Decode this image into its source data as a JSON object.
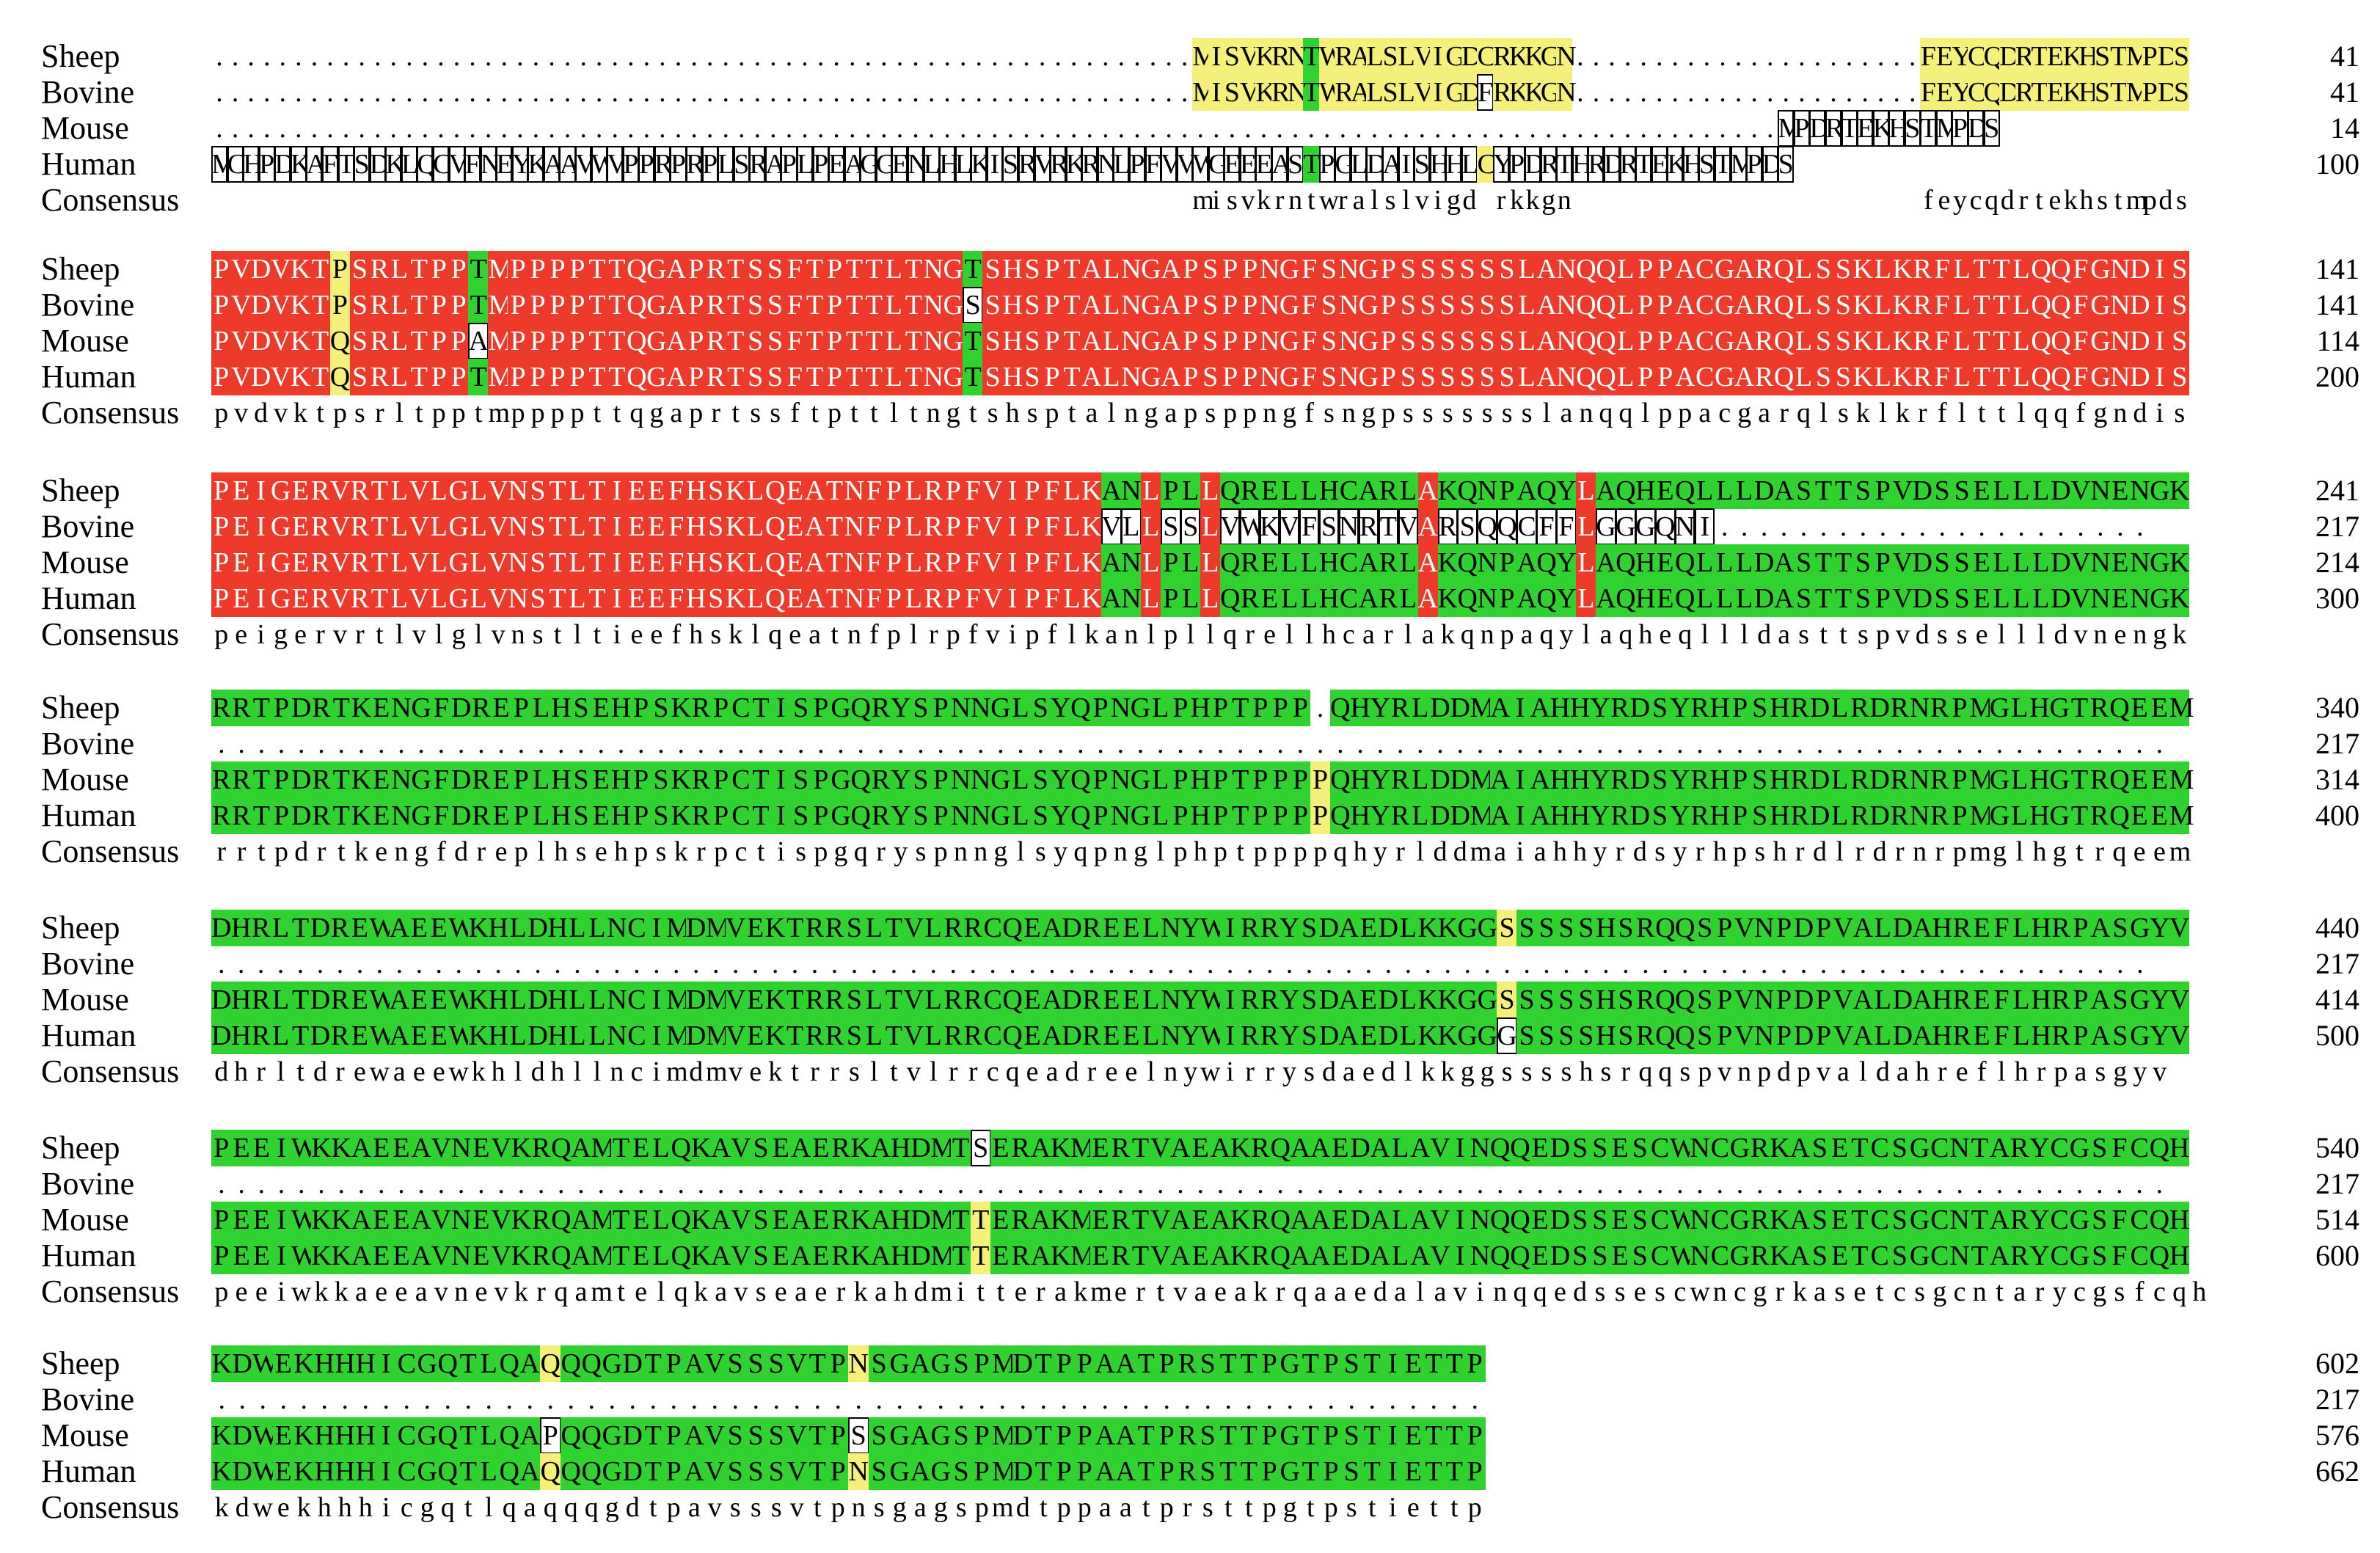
{
  "colors": {
    "identical": "#ee3a2a",
    "conserved": "#2fd22f",
    "similar": "#f4f07a",
    "background": "#ffffff"
  },
  "species": [
    "Sheep",
    "Bovine",
    "Mouse",
    "Human"
  ],
  "consensus_label": "Consensus",
  "blocks": [
    {
      "rows": [
        {
          "name": "Sheep",
          "seq": "..............................................................MISVKRNTWRALSLVIGDCRKKGN......................FEYCQDRTEKHSTMPDS",
          "end": "41"
        },
        {
          "name": "Bovine",
          "seq": "..............................................................MISVKRNTWRALSLVIGDFRKKGN......................FEYCQDRTEKHSTMPDS",
          "end": "41"
        },
        {
          "name": "Mouse",
          "seq": "...................................................................................................MPDRTEKHSTMPDS",
          "end": "14"
        },
        {
          "name": "Human",
          "seq": "MCHPDKAFTSDKLQCVFNEYKAAVWVPPRPRPLSRAPLPEAGGENLHLKISRVRKRNLPFVVWGEEEASTPGLDAISHHLCYPDRTHRDRTEKHSTMPDS",
          "end": "100"
        }
      ],
      "consensus": "..............................................................misvkrntwralslvigd.rkkgn......................feycqdrtekhstmpds"
    },
    {
      "rows": [
        {
          "name": "Sheep",
          "seq": "PVDVKTPSRLTPPTMPPPPTTQGAPRTSSFTPTTLTNGTSHSPTALNGAPSPPNGFSNGPSSSSSSLANQQLPPACGARQLSSKLKRFLTTLQQFGNDIS",
          "end": "141"
        },
        {
          "name": "Bovine",
          "seq": "PVDVKTPSRLTPPTMPPPPTTQGAPRTSSFTPTTLTNGSSHSPTALNGAPSPPNGFSNGPSSSSSSLANQQLPPACGARQLSSKLKRFLTTLQQFGNDIS",
          "end": "141"
        },
        {
          "name": "Mouse",
          "seq": "PVDVKTQSRLTPPAMPPPPTTQGAPRTSSFTPTTLTNGTSHSPTALNGAPSPPNGFSNGPSSSSSSLANQQLPPACGARQLSSKLKRFLTTLQQFGNDIS",
          "end": "114"
        },
        {
          "name": "Human",
          "seq": "PVDVKTQSRLTPPTMPPPPTTQGAPRTSSFTPTTLTNGTSHSPTALNGAPSPPNGFSNGPSSSSSSLANQQLPPACGARQLSSKLKRFLTTLQQFGNDIS",
          "end": "200"
        }
      ],
      "consensus": "pvdvktpsrltpptmppppttqgaprtssftpttltngtshsptalngapsppngfsngpssssssslanqqlppacgarqlsklkrflttlqqfgndis"
    },
    {
      "rows": [
        {
          "name": "Sheep",
          "seq": "PEIGERVRTLVLGLVNSTLTIEEFHSKLQEATNFPLRPFVIPFLKANLPLLQRELLHCARLAKQNPAQYLAQHEQLLLDASTTSPVDSSELLLDVNENGK",
          "end": "241"
        },
        {
          "name": "Bovine",
          "seq": "PEIGERVRTLVLGLVNSTLTIEEFHSKLQEATNFPLRPFVIPFLKVLLSSLVWKVFSNRTVARSQQCFFLGGGQNI......................",
          "end": "217"
        },
        {
          "name": "Mouse",
          "seq": "PEIGERVRTLVLGLVNSTLTIEEFHSKLQEATNFPLRPFVIPFLKANLPLLQRELLHCARLAKQNPAQYLAQHEQLLLDASTTSPVDSSELLLDVNENGK",
          "end": "214"
        },
        {
          "name": "Human",
          "seq": "PEIGERVRTLVLGLVNSTLTIEEFHSKLQEATNFPLRPFVIPFLKANLPLLQRELLHCARLAKQNPAQYLAQHEQLLLDASTTSPVDSSELLLDVNENGK",
          "end": "300"
        }
      ],
      "consensus": "peigervrtlvlglvnstltieefhsklqeatnfplrpfvipflkanlpllqrellhcarlakqnpaqylaqheqllldasttspvdssellldvnengk"
    },
    {
      "rows": [
        {
          "name": "Sheep",
          "seq": "RRTPDRTKENGFDREPLHSEHPSKRPCTISPGQRYSPNNGLSYQPNGLPHPTPPP.QHYRLDDMAIAHHYRDSYRHPSHRDLRDRNRPMGLHGTRQEEM",
          "end": "340"
        },
        {
          "name": "Bovine",
          "seq": "..................................................................................................",
          "end": "217"
        },
        {
          "name": "Mouse",
          "seq": "RRTPDRTKENGFDREPLHSEHPSKRPCTISPGQRYSPNNGLSYQPNGLPHPTPPPPQHYRLDDMAIAHHYRDSYRHPSHRDLRDRNRPMGLHGTRQEEM",
          "end": "314"
        },
        {
          "name": "Human",
          "seq": "RRTPDRTKENGFDREPLHSEHPSKRPCTISPGQRYSPNNGLSYQPNGLPHPTPPPPQHYRLDDMAIAHHYRDSYRHPSHRDLRDRNRPMGLHGTRQEEM",
          "end": "400"
        }
      ],
      "consensus": "rrtpdrtkengfdreplhsehpskrpctispgqryspnnglsyqpnglphptppppqhyrlddmaiahhyrdsyrhpshrdlrdrnrpmglhgtrqeem"
    },
    {
      "rows": [
        {
          "name": "Sheep",
          "seq": "DHRLTDREWAEEWKHLDHLLNCIMDMVEKTRRSLTVLRRCQEADREELNYWIRRYSDAEDLKKGGSSSSSHSRQQSPVNPDPVALDAHREFLHRPASGYV",
          "end": "440"
        },
        {
          "name": "Bovine",
          "seq": "..................................................................................................",
          "end": "217"
        },
        {
          "name": "Mouse",
          "seq": "DHRLTDREWAEEWKHLDHLLNCIMDMVEKTRRSLTVLRRCQEADREELNYWIRRYSDAEDLKKGGSSSSSHSRQQSPVNPDPVALDAHREFLHRPASGYV",
          "end": "414"
        },
        {
          "name": "Human",
          "seq": "DHRLTDREWAEEWKHLDHLLNCIMDMVEKTRRSLTVLRRCQEADREELNYWIRRYSDAEDLKKGGGSSSSHSRQQSPVNPDPVALDAHREFLHRPASGYV",
          "end": "500"
        }
      ],
      "consensus": "dhrltdrewaeewkhldhllncimdmvektrrsltvlrrcqeadreelnywirrysdaedlkkggsssshsrqqspvnpdpvaldahreflhrpasgyv"
    },
    {
      "rows": [
        {
          "name": "Sheep",
          "seq": "PEEIWKKAEEAVNEVKRQAMTELQKAVSEAERKAHDMTSERAKMERTVAEAKRQAAEDALAVINQQEDSSESCWNCGRKASETCSGCNTARYCGSFCQH",
          "end": "540"
        },
        {
          "name": "Bovine",
          "seq": "..................................................................................................",
          "end": "217"
        },
        {
          "name": "Mouse",
          "seq": "PEEIWKKAEEAVNEVKRQAMTELQKAVSEAERKAHDMTTERAKMERTVAEAKRQAAEDALAVINQQEDSSESCWNCGRKASETCSGCNTARYCGSFCQH",
          "end": "514"
        },
        {
          "name": "Human",
          "seq": "PEEIWKKAEEAVNEVKRQAMTELQKAVSEAERKAHDMTTERAKMERTVAEAKRQAAEDALAVINQQEDSSESCWNCGRKASETCSGCNTARYCGSFCQH",
          "end": "600"
        }
      ],
      "consensus": "peeiwkkaeeavnevkrqamtelqkavseaerkahdmitterakmertvaeakrqaaedalavinqqedssescwncgrkasetcsgcntarycgsfcqh"
    },
    {
      "rows": [
        {
          "name": "Sheep",
          "seq": "KDWEKHHHICGQTLQAQQQGDTPAVSSSVTPNSGAGSPMDTPPAATPRSTTPGTPSTIETTP",
          "end": "602"
        },
        {
          "name": "Bovine",
          "seq": "..............................................................",
          "end": "217"
        },
        {
          "name": "Mouse",
          "seq": "KDWEKHHHICGQTLQAPQQGDTPAVSSSVTPSSGAGSPMDTPPAATPRSTTPGTPSTIETTP",
          "end": "576"
        },
        {
          "name": "Human",
          "seq": "KDWEKHHHICGQTLQAQQQGDTPAVSSSVTPNSGAGSPMDTPPAATPRSTTPGTPSTIETTP",
          "end": "662"
        }
      ],
      "consensus": "kdwekhhhicgqtlqaqqqgdtpavsssvtpnsgagspmdtppaatprsttpgtpstiettp"
    }
  ]
}
